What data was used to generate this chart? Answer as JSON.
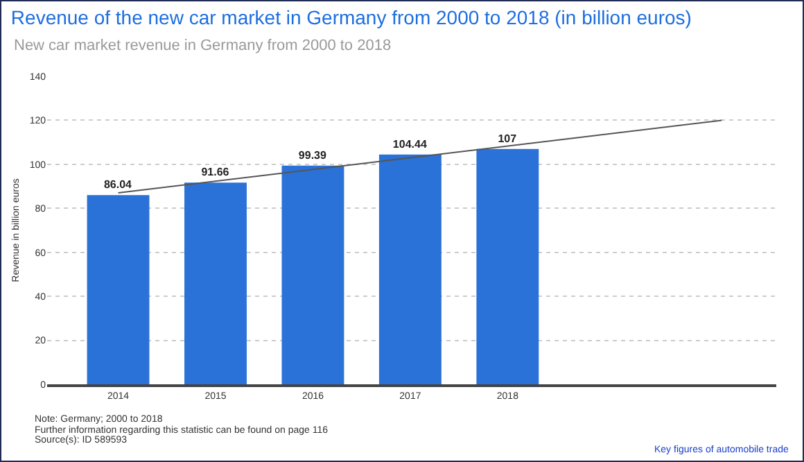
{
  "chart_data": {
    "type": "bar",
    "title": "Revenue of the new car market in Germany from 2000 to 2018 (in billion euros)",
    "subtitle": "New car market revenue in Germany from 2000 to 2018",
    "ylabel": "Revenue in billion euros",
    "x": [
      2014,
      2015,
      2016,
      2017,
      2018
    ],
    "series": [
      {
        "color": "#2a72d8",
        "values": [
          86.04,
          91.66,
          99.39,
          104.44,
          107
        ],
        "value_labels": [
          "86.04",
          "91.66",
          "99.39",
          "104.44",
          "107"
        ]
      },
      {
        "type": "line",
        "color": "#555555",
        "x": [
          2014,
          2020.2
        ],
        "values": [
          87,
          120
        ]
      }
    ],
    "xlim": [
      2013.27,
      2020.76
    ],
    "xticks": [
      2014,
      2015,
      2016,
      2017,
      2018
    ],
    "ylim": [
      0,
      140
    ],
    "yticks": [
      0,
      20,
      40,
      60,
      80,
      100,
      120,
      140
    ],
    "grid": "y",
    "annotations": [
      "Note: Germany; 2000 to 2018",
      "Further information regarding this statistic can be found on page 116",
      "Source(s): ID 589593",
      "Key figures of automobile trade"
    ]
  }
}
